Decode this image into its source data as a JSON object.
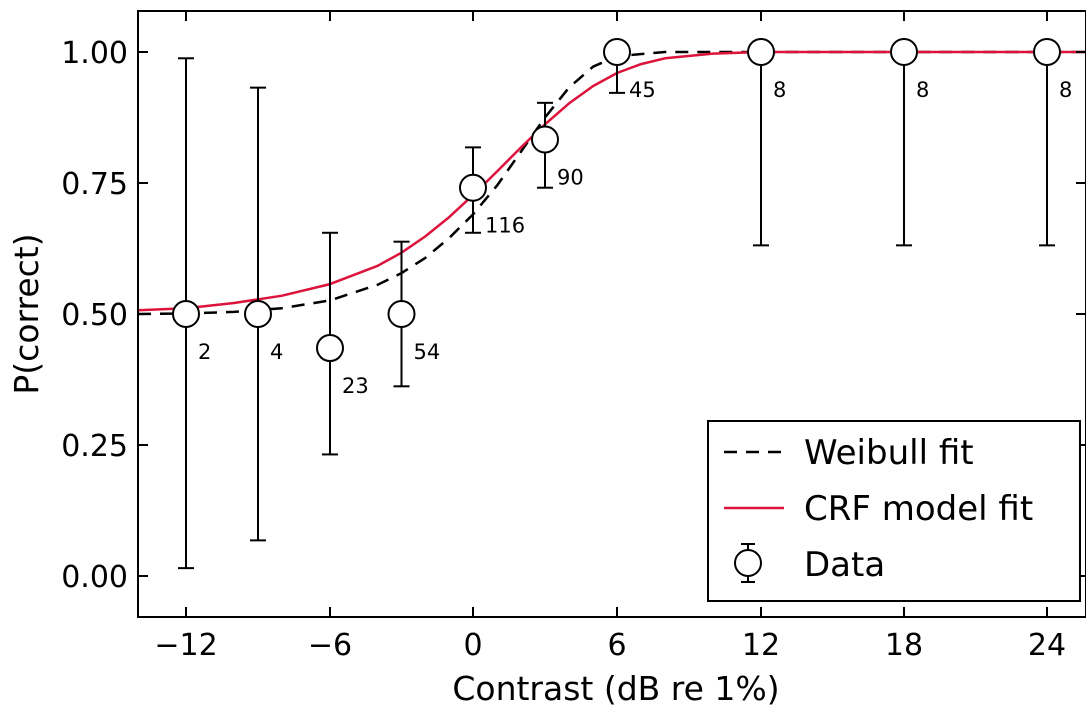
{
  "chart_data": {
    "type": "scatter",
    "xlabel": "Contrast (dB re 1%)",
    "ylabel": "P(correct)",
    "x_ticks": [
      {
        "value": -12,
        "label": "−12"
      },
      {
        "value": -6,
        "label": "−6"
      },
      {
        "value": 0,
        "label": "0"
      },
      {
        "value": 6,
        "label": "6"
      },
      {
        "value": 12,
        "label": "12"
      },
      {
        "value": 18,
        "label": "18"
      },
      {
        "value": 24,
        "label": "24"
      }
    ],
    "y_ticks": [
      {
        "value": 0.0,
        "label": "0.00"
      },
      {
        "value": 0.25,
        "label": "0.25"
      },
      {
        "value": 0.5,
        "label": "0.50"
      },
      {
        "value": 0.75,
        "label": "0.75"
      },
      {
        "value": 1.0,
        "label": "1.00"
      }
    ],
    "xlim": [
      -14,
      26
    ],
    "ylim": [
      -0.08,
      1.08
    ],
    "x_axis_note": "piecewise: spacing of 3 dB per major segment below 6, 6 dB per segment above 6",
    "data": {
      "name": "Data",
      "points": [
        {
          "x": -12,
          "y": 0.5,
          "err_low": 0.015,
          "err_high": 0.988,
          "n": "2"
        },
        {
          "x": -9,
          "y": 0.5,
          "err_low": 0.068,
          "err_high": 0.932,
          "n": "4"
        },
        {
          "x": -6,
          "y": 0.435,
          "err_low": 0.232,
          "err_high": 0.655,
          "n": "23"
        },
        {
          "x": -3,
          "y": 0.5,
          "err_low": 0.362,
          "err_high": 0.638,
          "n": "54"
        },
        {
          "x": 0,
          "y": 0.741,
          "err_low": 0.655,
          "err_high": 0.818,
          "n": "116"
        },
        {
          "x": 3,
          "y": 0.833,
          "err_low": 0.741,
          "err_high": 0.903,
          "n": "90"
        },
        {
          "x": 6,
          "y": 1.0,
          "err_low": 0.922,
          "err_high": 1.0,
          "n": "45"
        },
        {
          "x": 12,
          "y": 1.0,
          "err_low": 0.631,
          "err_high": 1.0,
          "n": "8"
        },
        {
          "x": 18,
          "y": 1.0,
          "err_low": 0.631,
          "err_high": 1.0,
          "n": "8"
        },
        {
          "x": 24,
          "y": 1.0,
          "err_low": 0.631,
          "err_high": 1.0,
          "n": "8"
        }
      ]
    },
    "series": [
      {
        "name": "Weibull fit",
        "style": "dashed",
        "color": "#000000",
        "points": [
          [
            -14,
            0.5
          ],
          [
            -12,
            0.501
          ],
          [
            -10,
            0.504
          ],
          [
            -8,
            0.511
          ],
          [
            -6,
            0.526
          ],
          [
            -4,
            0.556
          ],
          [
            -3,
            0.578
          ],
          [
            -2,
            0.607
          ],
          [
            -1,
            0.645
          ],
          [
            0,
            0.69
          ],
          [
            1,
            0.745
          ],
          [
            2,
            0.81
          ],
          [
            3,
            0.875
          ],
          [
            4,
            0.932
          ],
          [
            5,
            0.972
          ],
          [
            6,
            0.992
          ],
          [
            8,
            1.0
          ],
          [
            12,
            1.0
          ],
          [
            18,
            1.0
          ],
          [
            24,
            1.0
          ],
          [
            26,
            1.0
          ]
        ]
      },
      {
        "name": "CRF model fit",
        "style": "solid",
        "color": "#dc143c",
        "points": [
          [
            -14,
            0.507
          ],
          [
            -12,
            0.511
          ],
          [
            -10,
            0.521
          ],
          [
            -8,
            0.535
          ],
          [
            -6,
            0.557
          ],
          [
            -4,
            0.592
          ],
          [
            -3,
            0.617
          ],
          [
            -2,
            0.648
          ],
          [
            -1,
            0.685
          ],
          [
            0,
            0.727
          ],
          [
            1,
            0.772
          ],
          [
            2,
            0.818
          ],
          [
            3,
            0.862
          ],
          [
            4,
            0.902
          ],
          [
            5,
            0.935
          ],
          [
            6,
            0.96
          ],
          [
            7,
            0.977
          ],
          [
            8,
            0.988
          ],
          [
            10,
            0.997
          ],
          [
            12,
            1.0
          ],
          [
            18,
            1.0
          ],
          [
            24,
            1.0
          ],
          [
            26,
            1.0
          ]
        ]
      }
    ],
    "legend": {
      "placement": "bottom-right",
      "entries": [
        {
          "label": "Weibull fit",
          "kind": "dashed-line"
        },
        {
          "label": "CRF model fit",
          "kind": "red-line"
        },
        {
          "label": "Data",
          "kind": "marker"
        }
      ]
    },
    "grid": false
  }
}
